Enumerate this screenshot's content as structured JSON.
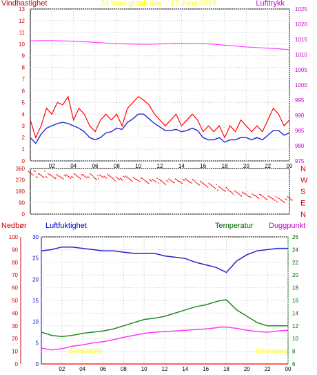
{
  "chart_data": [
    {
      "type": "line",
      "panel": "wind-pressure",
      "title": "24 hour graph day .. 17 June 2019",
      "left_axis_label": "Vindhastighet",
      "right_axis_label": "Lufttrykk",
      "x_ticks": [
        "02",
        "04",
        "06",
        "08",
        "10",
        "12",
        "14",
        "16",
        "18",
        "20",
        "22",
        "00"
      ],
      "ylim_left": [
        0,
        13
      ],
      "y_ticks_left": [
        "0",
        "1",
        "2",
        "3",
        "4",
        "5",
        "6",
        "7",
        "8",
        "9",
        "10",
        "11",
        "12",
        "13"
      ],
      "ylim_right": [
        975,
        1025
      ],
      "y_ticks_right": [
        "975",
        "980",
        "985",
        "990",
        "995",
        "1000",
        "1005",
        "1010",
        "1015",
        "1020",
        "1025"
      ],
      "colors": {
        "gust": "#ff0000",
        "average": "#3333cc",
        "pressure": "#ff44ff",
        "title": "#ffff00",
        "left_label": "#cc0000",
        "right_label": "#cc00cc"
      },
      "series": [
        {
          "name": "Lufttrykk",
          "axis": "right",
          "x": [
            0,
            1,
            2,
            3,
            4,
            5,
            6,
            7,
            8,
            9,
            10,
            11,
            12,
            13,
            14,
            15,
            16,
            17,
            18,
            19,
            20,
            21,
            22,
            23,
            24
          ],
          "values": [
            1014.5,
            1014.6,
            1014.6,
            1014.5,
            1014.4,
            1014.2,
            1014.0,
            1013.8,
            1013.6,
            1013.5,
            1013.4,
            1013.4,
            1013.5,
            1013.6,
            1013.7,
            1013.7,
            1013.6,
            1013.4,
            1013.1,
            1012.8,
            1012.5,
            1012.3,
            1012.1,
            1011.9,
            1011.6
          ]
        },
        {
          "name": "gust",
          "axis": "left",
          "x": [
            0,
            0.5,
            1,
            1.5,
            2,
            2.5,
            3,
            3.5,
            4,
            4.5,
            5,
            5.5,
            6,
            6.5,
            7,
            7.5,
            8,
            8.5,
            9,
            9.5,
            10,
            10.5,
            11,
            11.5,
            12,
            12.5,
            13,
            13.5,
            14,
            14.5,
            15,
            15.5,
            16,
            16.5,
            17,
            17.5,
            18,
            18.5,
            19,
            19.5,
            20,
            20.5,
            21,
            21.5,
            22,
            22.5,
            23,
            23.5,
            24
          ],
          "values": [
            3.5,
            2.0,
            3.0,
            4.5,
            4.0,
            5.0,
            4.8,
            5.5,
            3.5,
            4.5,
            4.0,
            3.0,
            2.5,
            3.5,
            4.0,
            3.5,
            4.0,
            3.0,
            4.5,
            5.0,
            5.5,
            5.2,
            4.8,
            4.0,
            3.5,
            3.0,
            3.5,
            4.0,
            3.0,
            3.5,
            4.0,
            3.5,
            2.5,
            3.0,
            2.5,
            3.0,
            2.0,
            3.0,
            2.5,
            3.5,
            3.0,
            2.5,
            3.0,
            2.5,
            3.5,
            4.5,
            4.0,
            3.0,
            3.5
          ]
        },
        {
          "name": "average",
          "axis": "left",
          "x": [
            0,
            0.5,
            1,
            1.5,
            2,
            2.5,
            3,
            3.5,
            4,
            4.5,
            5,
            5.5,
            6,
            6.5,
            7,
            7.5,
            8,
            8.5,
            9,
            9.5,
            10,
            10.5,
            11,
            11.5,
            12,
            12.5,
            13,
            13.5,
            14,
            14.5,
            15,
            15.5,
            16,
            16.5,
            17,
            17.5,
            18,
            18.5,
            19,
            19.5,
            20,
            20.5,
            21,
            21.5,
            22,
            22.5,
            23,
            23.5,
            24
          ],
          "values": [
            2.0,
            1.5,
            2.3,
            2.8,
            3.0,
            3.2,
            3.3,
            3.2,
            3.0,
            2.8,
            2.5,
            2.0,
            1.8,
            2.0,
            2.4,
            2.5,
            2.8,
            2.7,
            3.3,
            3.6,
            4.0,
            4.0,
            3.6,
            3.2,
            2.9,
            2.6,
            2.6,
            2.7,
            2.5,
            2.6,
            2.8,
            2.6,
            2.0,
            1.8,
            1.8,
            2.0,
            1.6,
            1.8,
            1.8,
            2.0,
            2.0,
            1.8,
            2.0,
            1.8,
            2.2,
            2.6,
            2.6,
            2.2,
            2.4
          ]
        }
      ]
    },
    {
      "type": "scatter",
      "panel": "wind-direction",
      "x_ticks": [
        "02",
        "04",
        "06",
        "08",
        "10",
        "12",
        "14",
        "16",
        "18",
        "20",
        "22",
        "00"
      ],
      "ylim": [
        0,
        360
      ],
      "y_ticks": [
        "0",
        "90",
        "180",
        "270",
        "360"
      ],
      "compass_labels": [
        "N",
        "W",
        "S",
        "E",
        "N"
      ],
      "colors": {
        "points": "#ff0000",
        "compass": "#cc0000"
      },
      "series": [
        {
          "name": "direction",
          "x": [
            0,
            0.5,
            1,
            1.5,
            2,
            2.5,
            3,
            3.5,
            4,
            4.5,
            5,
            5.5,
            6,
            6.5,
            7,
            7.5,
            8,
            8.5,
            9,
            9.5,
            10,
            10.5,
            11,
            11.5,
            12,
            12.5,
            13,
            13.5,
            14,
            14.5,
            15,
            15.5,
            16,
            16.5,
            17,
            17.5,
            18,
            18.5,
            19,
            19.5,
            20,
            20.5,
            21,
            21.5,
            22,
            22.5,
            23,
            23.5,
            24
          ],
          "values": [
            310,
            305,
            300,
            310,
            305,
            300,
            295,
            300,
            310,
            300,
            300,
            305,
            290,
            300,
            305,
            295,
            280,
            285,
            290,
            280,
            275,
            270,
            260,
            270,
            265,
            255,
            270,
            265,
            260,
            270,
            265,
            250,
            240,
            230,
            220,
            210,
            200,
            185,
            170,
            160,
            155,
            150,
            145,
            140,
            130,
            125,
            120,
            110,
            130
          ]
        }
      ]
    },
    {
      "type": "line",
      "panel": "humidity-temperature",
      "header_labels": {
        "rain": "Nedbør",
        "humidity": "Luftfuktighet",
        "temperature": "Temperatur",
        "dewpoint": "Duggpunkt"
      },
      "sunrise_label": "Soloppgang",
      "sunset_label": "Solnedgang",
      "x_ticks": [
        "02",
        "04",
        "06",
        "08",
        "10",
        "12",
        "14",
        "16",
        "18",
        "20",
        "22",
        "00"
      ],
      "ylim_rain": [
        0,
        100
      ],
      "y_ticks_rain": [
        "0",
        "10",
        "20",
        "30",
        "40",
        "50",
        "60",
        "70",
        "80",
        "90",
        "100"
      ],
      "ylim_left": [
        0,
        30
      ],
      "y_ticks_left": [
        "0",
        "5",
        "10",
        "15",
        "20",
        "25",
        "30"
      ],
      "ylim_right": [
        6,
        26
      ],
      "y_ticks_right": [
        "6",
        "8",
        "10",
        "12",
        "14",
        "16",
        "18",
        "20",
        "22",
        "24",
        "26"
      ],
      "colors": {
        "humidity": "#2222cc",
        "temperature": "#228822",
        "dewpoint": "#ff33ff",
        "rain": "#ff0000",
        "rain_label": "#cc0000",
        "humidity_label": "#0000cc",
        "temperature_label": "#006600",
        "dewpoint_label": "#cc00cc",
        "sun_labels": "#ffff00"
      },
      "series": [
        {
          "name": "Luftfuktighet",
          "axis": "rain",
          "x": [
            0,
            1,
            2,
            3,
            4,
            5,
            6,
            7,
            8,
            9,
            10,
            11,
            12,
            13,
            14,
            15,
            16,
            17,
            17.5,
            18,
            19,
            20,
            21,
            22,
            23,
            24
          ],
          "values": [
            89,
            90,
            92,
            92,
            91,
            90,
            89,
            89,
            88,
            87,
            87,
            87,
            85,
            84,
            83,
            80,
            78,
            76,
            74,
            72,
            81,
            86,
            89,
            90,
            91,
            91
          ]
        },
        {
          "name": "Temperatur",
          "axis": "right",
          "x": [
            0,
            1,
            2,
            3,
            4,
            5,
            6,
            7,
            8,
            9,
            10,
            11,
            12,
            13,
            14,
            15,
            16,
            17,
            17.5,
            18,
            19,
            20,
            21,
            22,
            23,
            24
          ],
          "values": [
            11.0,
            10.5,
            10.3,
            10.5,
            10.8,
            11.0,
            11.2,
            11.5,
            12.0,
            12.5,
            13.0,
            13.2,
            13.5,
            14.0,
            14.5,
            15.0,
            15.3,
            15.8,
            16.0,
            16.1,
            14.5,
            13.5,
            12.5,
            12.0,
            12.0,
            12.0
          ]
        },
        {
          "name": "Duggpunkt",
          "axis": "right",
          "x": [
            0,
            1,
            2,
            3,
            4,
            5,
            6,
            7,
            8,
            9,
            10,
            11,
            12,
            13,
            14,
            15,
            16,
            17,
            17.5,
            18,
            19,
            20,
            21,
            22,
            23,
            24
          ],
          "values": [
            8.5,
            8.2,
            8.4,
            8.8,
            9.0,
            9.3,
            9.5,
            9.8,
            10.2,
            10.5,
            10.8,
            11.0,
            11.1,
            11.2,
            11.3,
            11.4,
            11.5,
            11.7,
            11.8,
            11.8,
            11.6,
            11.3,
            11.1,
            11.0,
            11.2,
            11.3
          ]
        },
        {
          "name": "Nedbør",
          "axis": "rain",
          "x": [
            0,
            24
          ],
          "values": [
            0,
            0
          ]
        }
      ]
    }
  ]
}
